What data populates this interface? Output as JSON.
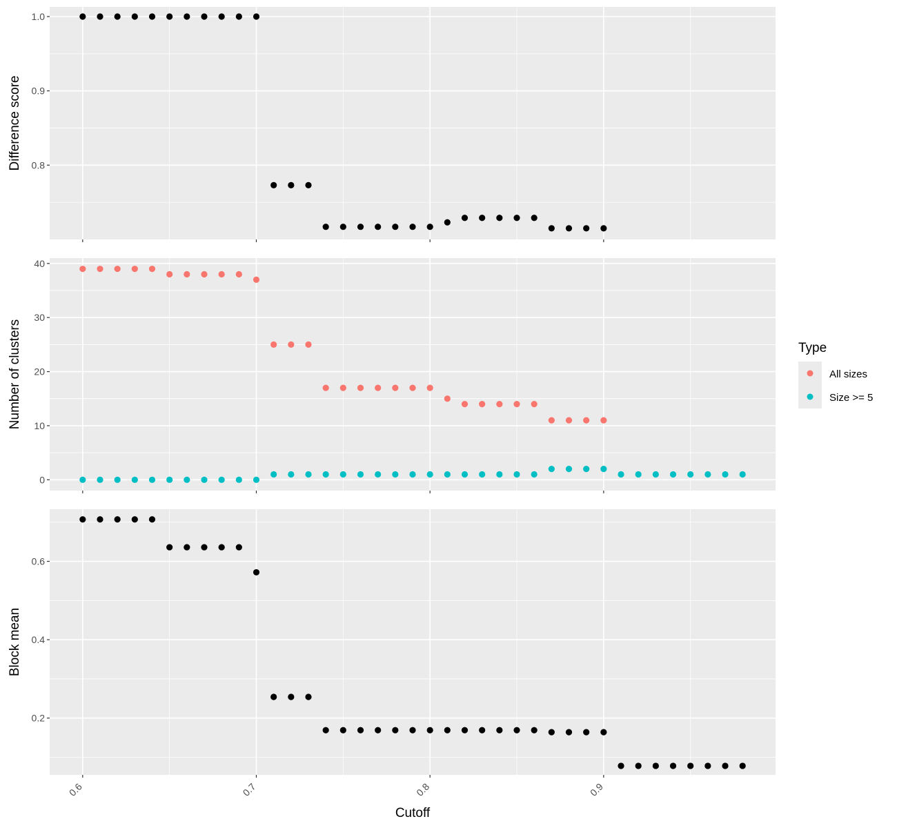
{
  "chart_data": {
    "type": "scatter",
    "xlabel": "Cutoff",
    "x_ticks": [
      0.6,
      0.7,
      0.8,
      0.9
    ],
    "x_tick_labels": [
      "0.6",
      "0.7",
      "0.8",
      "0.9"
    ],
    "xlim": [
      0.581,
      0.999
    ],
    "grid": true,
    "legend": {
      "title": "Type",
      "placement": "right",
      "entries": [
        {
          "label": "All sizes",
          "color": "#F8766D"
        },
        {
          "label": "Size >= 5",
          "color": "#00BFC4"
        }
      ]
    },
    "panels": [
      {
        "ylabel": "Difference score",
        "ylim": [
          0.7,
          1.013
        ],
        "y_ticks": [
          0.8,
          0.9,
          1.0
        ],
        "y_tick_labels": [
          "0.8",
          "0.9",
          "1.0"
        ],
        "series": [
          {
            "color": "#000000",
            "x": [
              0.6,
              0.61,
              0.62,
              0.63,
              0.64,
              0.65,
              0.66,
              0.67,
              0.68,
              0.69,
              0.7,
              0.71,
              0.72,
              0.73,
              0.74,
              0.75,
              0.76,
              0.77,
              0.78,
              0.79,
              0.8,
              0.81,
              0.82,
              0.83,
              0.84,
              0.85,
              0.86,
              0.87,
              0.88,
              0.89,
              0.9
            ],
            "y": [
              1.0,
              1.0,
              1.0,
              1.0,
              1.0,
              1.0,
              1.0,
              1.0,
              1.0,
              1.0,
              1.0,
              0.773,
              0.773,
              0.773,
              0.717,
              0.717,
              0.717,
              0.717,
              0.717,
              0.717,
              0.717,
              0.723,
              0.729,
              0.729,
              0.729,
              0.729,
              0.729,
              0.715,
              0.715,
              0.715,
              0.715
            ]
          }
        ]
      },
      {
        "ylabel": "Number of clusters",
        "ylim": [
          -2,
          41
        ],
        "y_ticks": [
          0,
          10,
          20,
          30,
          40
        ],
        "y_tick_labels": [
          "0",
          "10",
          "20",
          "30",
          "40"
        ],
        "series": [
          {
            "name": "All sizes",
            "color": "#F8766D",
            "x": [
              0.6,
              0.61,
              0.62,
              0.63,
              0.64,
              0.65,
              0.66,
              0.67,
              0.68,
              0.69,
              0.7,
              0.71,
              0.72,
              0.73,
              0.74,
              0.75,
              0.76,
              0.77,
              0.78,
              0.79,
              0.8,
              0.81,
              0.82,
              0.83,
              0.84,
              0.85,
              0.86,
              0.87,
              0.88,
              0.89,
              0.9
            ],
            "y": [
              39,
              39,
              39,
              39,
              39,
              38,
              38,
              38,
              38,
              38,
              37,
              25,
              25,
              25,
              17,
              17,
              17,
              17,
              17,
              17,
              17,
              15,
              14,
              14,
              14,
              14,
              14,
              11,
              11,
              11,
              11
            ]
          },
          {
            "name": "Size >= 5",
            "color": "#00BFC4",
            "x": [
              0.6,
              0.61,
              0.62,
              0.63,
              0.64,
              0.65,
              0.66,
              0.67,
              0.68,
              0.69,
              0.7,
              0.71,
              0.72,
              0.73,
              0.74,
              0.75,
              0.76,
              0.77,
              0.78,
              0.79,
              0.8,
              0.81,
              0.82,
              0.83,
              0.84,
              0.85,
              0.86,
              0.87,
              0.88,
              0.89,
              0.9,
              0.91,
              0.92,
              0.93,
              0.94,
              0.95,
              0.96,
              0.97,
              0.98
            ],
            "y": [
              0,
              0,
              0,
              0,
              0,
              0,
              0,
              0,
              0,
              0,
              0,
              1,
              1,
              1,
              1,
              1,
              1,
              1,
              1,
              1,
              1,
              1,
              1,
              1,
              1,
              1,
              1,
              2,
              2,
              2,
              2,
              1,
              1,
              1,
              1,
              1,
              1,
              1,
              1
            ]
          }
        ]
      },
      {
        "ylabel": "Block mean",
        "ylim": [
          0.055,
          0.733
        ],
        "y_ticks": [
          0.2,
          0.4,
          0.6
        ],
        "y_tick_labels": [
          "0.2",
          "0.4",
          "0.6"
        ],
        "series": [
          {
            "color": "#000000",
            "x": [
              0.6,
              0.61,
              0.62,
              0.63,
              0.64,
              0.65,
              0.66,
              0.67,
              0.68,
              0.69,
              0.7,
              0.71,
              0.72,
              0.73,
              0.74,
              0.75,
              0.76,
              0.77,
              0.78,
              0.79,
              0.8,
              0.81,
              0.82,
              0.83,
              0.84,
              0.85,
              0.86,
              0.87,
              0.88,
              0.89,
              0.9,
              0.91,
              0.92,
              0.93,
              0.94,
              0.95,
              0.96,
              0.97,
              0.98
            ],
            "y": [
              0.707,
              0.707,
              0.707,
              0.707,
              0.707,
              0.636,
              0.636,
              0.636,
              0.636,
              0.636,
              0.572,
              0.254,
              0.254,
              0.254,
              0.169,
              0.169,
              0.169,
              0.169,
              0.169,
              0.169,
              0.169,
              0.169,
              0.169,
              0.169,
              0.169,
              0.169,
              0.169,
              0.164,
              0.164,
              0.164,
              0.164,
              0.078,
              0.078,
              0.078,
              0.078,
              0.078,
              0.078,
              0.078,
              0.078
            ]
          }
        ]
      }
    ]
  }
}
